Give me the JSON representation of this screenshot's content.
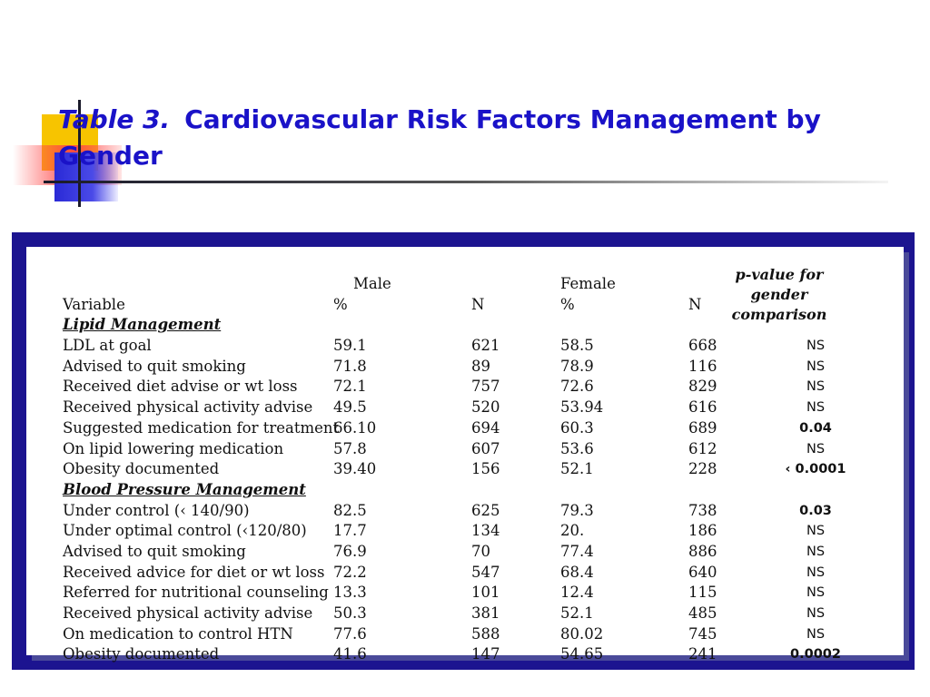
{
  "title": {
    "table_label": "Table 3.",
    "text": "Cardiovascular Risk Factors Management by Gender"
  },
  "colors": {
    "title": "#1a12c8",
    "frame": "#1c1490"
  },
  "table": {
    "group_headers": {
      "male": "Male",
      "female": "Female"
    },
    "column_headers": {
      "variable": "Variable",
      "male_pct": "%",
      "male_n": "N",
      "female_pct": "%",
      "female_n": "N",
      "pvalue": "p-value for gender comparison"
    },
    "sections": [
      {
        "title": "Lipid Management",
        "rows": [
          {
            "variable": "LDL at goal",
            "male_pct": "59.1",
            "male_n": "621",
            "female_pct": "58.5",
            "female_n": "668",
            "pvalue": "NS"
          },
          {
            "variable": "Advised to quit smoking",
            "male_pct": "71.8",
            "male_n": "89",
            "female_pct": "78.9",
            "female_n": "116",
            "pvalue": "NS"
          },
          {
            "variable": "Received diet advise or wt loss",
            "male_pct": "72.1",
            "male_n": "757",
            "female_pct": "72.6",
            "female_n": "829",
            "pvalue": "NS"
          },
          {
            "variable": "Received physical activity advise",
            "male_pct": "49.5",
            "male_n": "520",
            "female_pct": "53.94",
            "female_n": "616",
            "pvalue": "NS"
          },
          {
            "variable": "Suggested medication for treatment",
            "male_pct": "66.10",
            "male_n": "694",
            "female_pct": "60.3",
            "female_n": "689",
            "pvalue": "0.04"
          },
          {
            "variable": "On lipid lowering medication",
            "male_pct": "57.8",
            "male_n": "607",
            "female_pct": "53.6",
            "female_n": "612",
            "pvalue": "NS"
          },
          {
            "variable": "Obesity documented",
            "male_pct": "39.40",
            "male_n": "156",
            "female_pct": "52.1",
            "female_n": "228",
            "pvalue": "‹ 0.0001"
          }
        ]
      },
      {
        "title": "Blood Pressure Management",
        "rows": [
          {
            "variable": "Under control (‹ 140/90)",
            "male_pct": "82.5",
            "male_n": "625",
            "female_pct": "79.3",
            "female_n": "738",
            "pvalue": "0.03"
          },
          {
            "variable": "Under optimal control (‹120/80)",
            "male_pct": "17.7",
            "male_n": "134",
            "female_pct": "20.",
            "female_n": "186",
            "pvalue": "NS"
          },
          {
            "variable": "Advised to quit smoking",
            "male_pct": "76.9",
            "male_n": "70",
            "female_pct": "77.4",
            "female_n": "886",
            "pvalue": "NS"
          },
          {
            "variable": "Received advice for diet or wt loss",
            "male_pct": "72.2",
            "male_n": "547",
            "female_pct": "68.4",
            "female_n": "640",
            "pvalue": "NS"
          },
          {
            "variable": "Referred for nutritional counseling",
            "male_pct": "13.3",
            "male_n": "101",
            "female_pct": "12.4",
            "female_n": "115",
            "pvalue": "NS"
          },
          {
            "variable": "Received physical activity advise",
            "male_pct": "50.3",
            "male_n": "381",
            "female_pct": "52.1",
            "female_n": "485",
            "pvalue": "NS"
          },
          {
            "variable": "On medication to control HTN",
            "male_pct": "77.6",
            "male_n": "588",
            "female_pct": "80.02",
            "female_n": "745",
            "pvalue": "NS"
          },
          {
            "variable": "Obesity documented",
            "male_pct": "41.6",
            "male_n": "147",
            "female_pct": "54.65",
            "female_n": "241",
            "pvalue": "0.0002"
          }
        ]
      }
    ]
  }
}
